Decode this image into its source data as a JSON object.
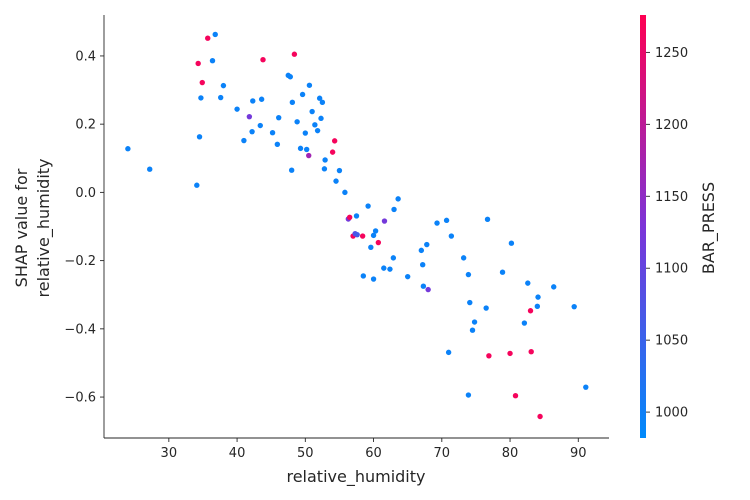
{
  "chart_data": {
    "type": "scatter",
    "xlabel": "relative_humidity",
    "ylabel_lines": [
      "SHAP value for",
      "relative_humidity"
    ],
    "xlim": [
      20.5,
      94.5
    ],
    "ylim": [
      -0.72,
      0.52
    ],
    "xticks": [
      30,
      40,
      50,
      60,
      70,
      80,
      90
    ],
    "yticks": [
      0.4,
      0.2,
      0.0,
      -0.2,
      -0.4,
      -0.6
    ],
    "ytick_labels": [
      "0.4",
      "0.2",
      "0.0",
      "−0.2",
      "−0.4",
      "−0.6"
    ],
    "colorbar": {
      "label": "BAR_PRESS",
      "range": [
        982,
        1276
      ],
      "ticks": [
        1250,
        1200,
        1150,
        1100,
        1050,
        1000
      ],
      "colors": [
        "#008afb",
        "#7c34d8",
        "#ff0052"
      ]
    },
    "points": [
      {
        "x": 24.0,
        "y": 0.128,
        "c": 995
      },
      {
        "x": 27.2,
        "y": 0.068,
        "c": 995
      },
      {
        "x": 34.1,
        "y": 0.021,
        "c": 995
      },
      {
        "x": 34.3,
        "y": 0.378,
        "c": 1265
      },
      {
        "x": 34.5,
        "y": 0.163,
        "c": 995
      },
      {
        "x": 34.7,
        "y": 0.277,
        "c": 995
      },
      {
        "x": 34.9,
        "y": 0.322,
        "c": 1265
      },
      {
        "x": 35.7,
        "y": 0.452,
        "c": 1265
      },
      {
        "x": 36.4,
        "y": 0.386,
        "c": 995
      },
      {
        "x": 36.8,
        "y": 0.463,
        "c": 995
      },
      {
        "x": 37.6,
        "y": 0.278,
        "c": 995
      },
      {
        "x": 38.0,
        "y": 0.313,
        "c": 995
      },
      {
        "x": 40.0,
        "y": 0.244,
        "c": 995
      },
      {
        "x": 41.0,
        "y": 0.152,
        "c": 995
      },
      {
        "x": 41.8,
        "y": 0.222,
        "c": 1120
      },
      {
        "x": 42.2,
        "y": 0.178,
        "c": 995
      },
      {
        "x": 42.3,
        "y": 0.268,
        "c": 995
      },
      {
        "x": 43.4,
        "y": 0.196,
        "c": 995
      },
      {
        "x": 43.6,
        "y": 0.273,
        "c": 995
      },
      {
        "x": 43.8,
        "y": 0.389,
        "c": 1265
      },
      {
        "x": 45.2,
        "y": 0.175,
        "c": 995
      },
      {
        "x": 45.9,
        "y": 0.141,
        "c": 995
      },
      {
        "x": 46.1,
        "y": 0.219,
        "c": 995
      },
      {
        "x": 47.5,
        "y": 0.343,
        "c": 995
      },
      {
        "x": 47.8,
        "y": 0.339,
        "c": 995
      },
      {
        "x": 48.0,
        "y": 0.065,
        "c": 995
      },
      {
        "x": 48.1,
        "y": 0.264,
        "c": 995
      },
      {
        "x": 48.4,
        "y": 0.405,
        "c": 1265
      },
      {
        "x": 48.8,
        "y": 0.207,
        "c": 995
      },
      {
        "x": 49.3,
        "y": 0.129,
        "c": 995
      },
      {
        "x": 49.6,
        "y": 0.287,
        "c": 995
      },
      {
        "x": 50.0,
        "y": 0.174,
        "c": 995
      },
      {
        "x": 50.2,
        "y": 0.126,
        "c": 995
      },
      {
        "x": 50.5,
        "y": 0.108,
        "c": 1170
      },
      {
        "x": 50.6,
        "y": 0.314,
        "c": 995
      },
      {
        "x": 51.0,
        "y": 0.237,
        "c": 995
      },
      {
        "x": 51.4,
        "y": 0.198,
        "c": 995
      },
      {
        "x": 51.8,
        "y": 0.181,
        "c": 995
      },
      {
        "x": 52.1,
        "y": 0.276,
        "c": 995
      },
      {
        "x": 52.3,
        "y": 0.217,
        "c": 995
      },
      {
        "x": 52.5,
        "y": 0.264,
        "c": 995
      },
      {
        "x": 52.8,
        "y": 0.069,
        "c": 995
      },
      {
        "x": 52.9,
        "y": 0.095,
        "c": 995
      },
      {
        "x": 54.0,
        "y": 0.118,
        "c": 1265
      },
      {
        "x": 54.3,
        "y": 0.151,
        "c": 1265
      },
      {
        "x": 54.5,
        "y": 0.033,
        "c": 995
      },
      {
        "x": 55.0,
        "y": 0.064,
        "c": 995
      },
      {
        "x": 55.8,
        "y": 0.0,
        "c": 995
      },
      {
        "x": 56.3,
        "y": -0.078,
        "c": 1120
      },
      {
        "x": 56.5,
        "y": -0.073,
        "c": 1265
      },
      {
        "x": 57.0,
        "y": -0.128,
        "c": 1265
      },
      {
        "x": 57.3,
        "y": -0.121,
        "c": 1080
      },
      {
        "x": 57.5,
        "y": -0.069,
        "c": 995
      },
      {
        "x": 57.6,
        "y": -0.124,
        "c": 1060
      },
      {
        "x": 58.4,
        "y": -0.128,
        "c": 1265
      },
      {
        "x": 58.5,
        "y": -0.245,
        "c": 995
      },
      {
        "x": 59.2,
        "y": -0.04,
        "c": 995
      },
      {
        "x": 59.6,
        "y": -0.161,
        "c": 995
      },
      {
        "x": 60.0,
        "y": -0.254,
        "c": 995
      },
      {
        "x": 60.0,
        "y": -0.126,
        "c": 995
      },
      {
        "x": 60.3,
        "y": -0.113,
        "c": 995
      },
      {
        "x": 60.7,
        "y": -0.147,
        "c": 1265
      },
      {
        "x": 61.5,
        "y": -0.222,
        "c": 995
      },
      {
        "x": 61.6,
        "y": -0.084,
        "c": 1120
      },
      {
        "x": 62.4,
        "y": -0.225,
        "c": 995
      },
      {
        "x": 62.9,
        "y": -0.192,
        "c": 995
      },
      {
        "x": 63.0,
        "y": -0.05,
        "c": 995
      },
      {
        "x": 63.6,
        "y": -0.019,
        "c": 995
      },
      {
        "x": 65.0,
        "y": -0.247,
        "c": 995
      },
      {
        "x": 67.0,
        "y": -0.17,
        "c": 995
      },
      {
        "x": 67.2,
        "y": -0.212,
        "c": 995
      },
      {
        "x": 67.3,
        "y": -0.275,
        "c": 995
      },
      {
        "x": 67.8,
        "y": -0.153,
        "c": 995
      },
      {
        "x": 68.0,
        "y": -0.285,
        "c": 1120
      },
      {
        "x": 69.3,
        "y": -0.09,
        "c": 995
      },
      {
        "x": 70.7,
        "y": -0.082,
        "c": 995
      },
      {
        "x": 71.0,
        "y": -0.469,
        "c": 995
      },
      {
        "x": 71.4,
        "y": -0.128,
        "c": 995
      },
      {
        "x": 73.2,
        "y": -0.192,
        "c": 995
      },
      {
        "x": 73.9,
        "y": -0.594,
        "c": 995
      },
      {
        "x": 73.9,
        "y": -0.241,
        "c": 995
      },
      {
        "x": 74.1,
        "y": -0.323,
        "c": 995
      },
      {
        "x": 74.5,
        "y": -0.404,
        "c": 995
      },
      {
        "x": 74.8,
        "y": -0.38,
        "c": 995
      },
      {
        "x": 76.5,
        "y": -0.339,
        "c": 995
      },
      {
        "x": 76.7,
        "y": -0.079,
        "c": 995
      },
      {
        "x": 76.9,
        "y": -0.479,
        "c": 1265
      },
      {
        "x": 78.9,
        "y": -0.234,
        "c": 995
      },
      {
        "x": 80.0,
        "y": -0.472,
        "c": 1265
      },
      {
        "x": 80.2,
        "y": -0.149,
        "c": 995
      },
      {
        "x": 80.8,
        "y": -0.596,
        "c": 1265
      },
      {
        "x": 82.1,
        "y": -0.383,
        "c": 995
      },
      {
        "x": 82.6,
        "y": -0.266,
        "c": 995
      },
      {
        "x": 83.0,
        "y": -0.347,
        "c": 1265
      },
      {
        "x": 83.1,
        "y": -0.467,
        "c": 1265
      },
      {
        "x": 84.0,
        "y": -0.334,
        "c": 995
      },
      {
        "x": 84.1,
        "y": -0.307,
        "c": 995
      },
      {
        "x": 84.4,
        "y": -0.657,
        "c": 1265
      },
      {
        "x": 86.4,
        "y": -0.277,
        "c": 995
      },
      {
        "x": 89.4,
        "y": -0.335,
        "c": 995
      },
      {
        "x": 91.1,
        "y": -0.571,
        "c": 995
      }
    ]
  }
}
